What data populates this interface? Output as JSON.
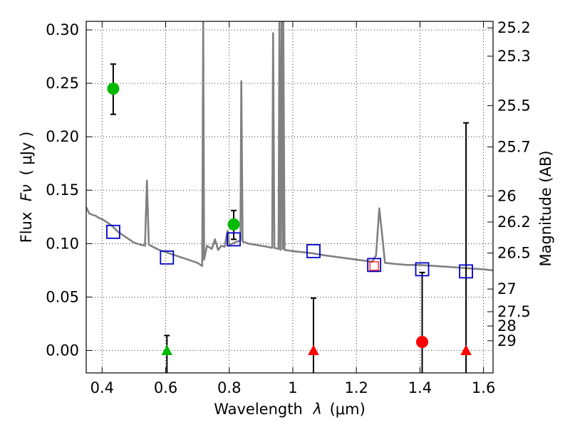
{
  "chart_data": {
    "type": "scatter",
    "xlabel_text": "Wavelength",
    "xlabel_symbol": "λ",
    "xlabel_unit": "(μm)",
    "ylabel_text": "Flux",
    "ylabel_symbol": "Fν",
    "ylabel_unit": "( μJy )",
    "y2label": "Magnitude (AB)",
    "xlim": [
      0.35,
      1.63
    ],
    "ylim": [
      -0.021,
      0.308
    ],
    "grid": true,
    "x_ticks": [
      {
        "value": 0.4,
        "label": "0.4"
      },
      {
        "value": 0.6,
        "label": "0.6"
      },
      {
        "value": 0.8,
        "label": "0.8"
      },
      {
        "value": 1.0,
        "label": "1"
      },
      {
        "value": 1.2,
        "label": "1.2"
      },
      {
        "value": 1.4,
        "label": "1.4"
      },
      {
        "value": 1.6,
        "label": "1.6"
      }
    ],
    "y_ticks": [
      {
        "value": 0.0,
        "label": "0.00"
      },
      {
        "value": 0.05,
        "label": "0.05"
      },
      {
        "value": 0.1,
        "label": "0.10"
      },
      {
        "value": 0.15,
        "label": "0.15"
      },
      {
        "value": 0.2,
        "label": "0.20"
      },
      {
        "value": 0.25,
        "label": "0.25"
      },
      {
        "value": 0.3,
        "label": "0.30"
      }
    ],
    "y2_ticks": [
      {
        "flux": 0.3019,
        "label": "25.2"
      },
      {
        "flux": 0.2754,
        "label": "25.3"
      },
      {
        "flux": 0.2291,
        "label": "25.5"
      },
      {
        "flux": 0.1905,
        "label": "25.7"
      },
      {
        "flux": 0.1445,
        "label": "26"
      },
      {
        "flux": 0.1202,
        "label": "26.2"
      },
      {
        "flux": 0.0912,
        "label": "26.5"
      },
      {
        "flux": 0.0575,
        "label": "27"
      },
      {
        "flux": 0.0363,
        "label": "27.5"
      },
      {
        "flux": 0.0229,
        "label": "28"
      },
      {
        "flux": 0.0091,
        "label": "29"
      }
    ],
    "template_color": "#808080",
    "template_points": [
      [
        0.35,
        0.134
      ],
      [
        0.36,
        0.128
      ],
      [
        0.37,
        0.127
      ],
      [
        0.38,
        0.126
      ],
      [
        0.39,
        0.124
      ],
      [
        0.4,
        0.123
      ],
      [
        0.41,
        0.121
      ],
      [
        0.42,
        0.119
      ],
      [
        0.43,
        0.117
      ],
      [
        0.44,
        0.114
      ],
      [
        0.45,
        0.111
      ],
      [
        0.46,
        0.109
      ],
      [
        0.47,
        0.107
      ],
      [
        0.48,
        0.105
      ],
      [
        0.49,
        0.103
      ],
      [
        0.5,
        0.101
      ],
      [
        0.52,
        0.099
      ],
      [
        0.535,
        0.098
      ],
      [
        0.541,
        0.159
      ],
      [
        0.547,
        0.099
      ],
      [
        0.56,
        0.097
      ],
      [
        0.58,
        0.094
      ],
      [
        0.6,
        0.092
      ],
      [
        0.62,
        0.09
      ],
      [
        0.64,
        0.088
      ],
      [
        0.66,
        0.086
      ],
      [
        0.68,
        0.084
      ],
      [
        0.7,
        0.082
      ],
      [
        0.71,
        0.08
      ],
      [
        0.715,
        0.079
      ],
      [
        0.718,
        0.308
      ],
      [
        0.721,
        0.085
      ],
      [
        0.73,
        0.098
      ],
      [
        0.745,
        0.095
      ],
      [
        0.755,
        0.104
      ],
      [
        0.765,
        0.094
      ],
      [
        0.775,
        0.098
      ],
      [
        0.785,
        0.097
      ],
      [
        0.795,
        0.112
      ],
      [
        0.8,
        0.099
      ],
      [
        0.81,
        0.1
      ],
      [
        0.825,
        0.102
      ],
      [
        0.835,
        0.103
      ],
      [
        0.838,
        0.252
      ],
      [
        0.842,
        0.102
      ],
      [
        0.86,
        0.1
      ],
      [
        0.88,
        0.099
      ],
      [
        0.9,
        0.098
      ],
      [
        0.92,
        0.097
      ],
      [
        0.935,
        0.096
      ],
      [
        0.938,
        0.297
      ],
      [
        0.942,
        0.096
      ],
      [
        0.955,
        0.095
      ],
      [
        0.958,
        0.308
      ],
      [
        0.961,
        0.094
      ],
      [
        0.965,
        0.308
      ],
      [
        0.968,
        0.095
      ],
      [
        0.97,
        0.308
      ],
      [
        0.974,
        0.094
      ],
      [
        1.0,
        0.093
      ],
      [
        1.03,
        0.092
      ],
      [
        1.06,
        0.091
      ],
      [
        1.1,
        0.089
      ],
      [
        1.15,
        0.087
      ],
      [
        1.2,
        0.085
      ],
      [
        1.25,
        0.083
      ],
      [
        1.262,
        0.089
      ],
      [
        1.272,
        0.133
      ],
      [
        1.28,
        0.111
      ],
      [
        1.29,
        0.082
      ],
      [
        1.32,
        0.081
      ],
      [
        1.36,
        0.08
      ],
      [
        1.4,
        0.08
      ],
      [
        1.45,
        0.079
      ],
      [
        1.5,
        0.078
      ],
      [
        1.55,
        0.077
      ],
      [
        1.6,
        0.076
      ],
      [
        1.63,
        0.075
      ]
    ],
    "model_points": {
      "marker": "square",
      "color": "#0000cc",
      "points": [
        {
          "x": 0.435,
          "y": 0.111
        },
        {
          "x": 0.604,
          "y": 0.087
        },
        {
          "x": 0.814,
          "y": 0.104
        },
        {
          "x": 1.065,
          "y": 0.093
        },
        {
          "x": 1.256,
          "y": 0.08
        },
        {
          "x": 1.407,
          "y": 0.076
        },
        {
          "x": 1.545,
          "y": 0.074
        }
      ]
    },
    "observed": [
      {
        "x": 0.435,
        "y": 0.245,
        "err_low": 0.221,
        "err_high": 0.268,
        "marker": "circle",
        "color": "#00bb00"
      },
      {
        "x": 0.814,
        "y": 0.118,
        "err_low": 0.104,
        "err_high": 0.131,
        "marker": "circle",
        "color": "#00bb00"
      },
      {
        "x": 0.604,
        "y": 0.0,
        "err_low": -0.021,
        "err_high": 0.014,
        "marker": "triangle",
        "color": "#00bb00"
      },
      {
        "x": 1.065,
        "y": 0.0,
        "err_low": -0.021,
        "err_high": 0.049,
        "marker": "triangle",
        "color": "#ff0000"
      },
      {
        "x": 1.407,
        "y": 0.008,
        "err_low": -0.021,
        "err_high": 0.073,
        "marker": "circle",
        "color": "#ff0000"
      },
      {
        "x": 1.545,
        "y": 0.0,
        "err_low": -0.021,
        "err_high": 0.213,
        "marker": "triangle",
        "color": "#ff0000"
      }
    ],
    "small_red_square": {
      "x": 1.256,
      "y": 0.079,
      "color": "#ff0000"
    }
  }
}
